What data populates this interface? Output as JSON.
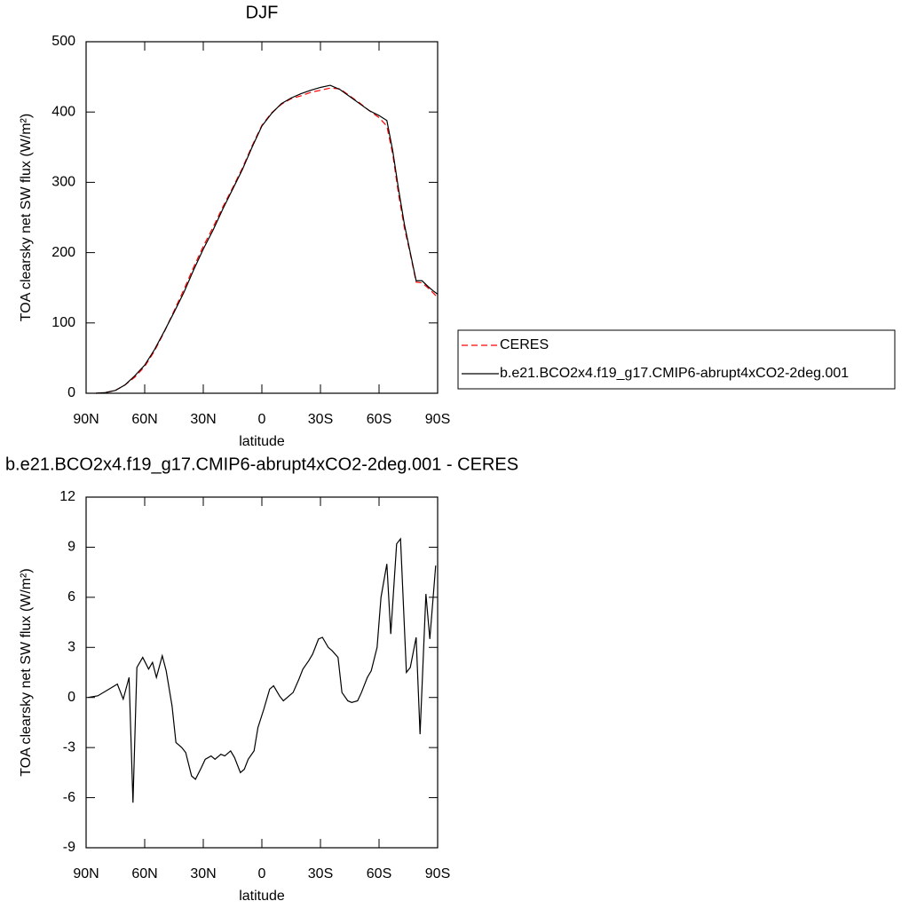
{
  "chart_data": [
    {
      "type": "line",
      "title": "DJF",
      "xlabel": "latitude",
      "ylabel": "TOA clearsky net SW flux (W/m²)",
      "xlim": [
        90,
        -90
      ],
      "ylim": [
        0,
        500
      ],
      "xticks": [
        {
          "value": 90,
          "label": "90N"
        },
        {
          "value": 60,
          "label": "60N"
        },
        {
          "value": 30,
          "label": "30N"
        },
        0,
        {
          "value": -30,
          "label": "30S"
        },
        {
          "value": -60,
          "label": "60S"
        },
        {
          "value": -90,
          "label": "90S"
        }
      ],
      "yticks": [
        0,
        100,
        200,
        300,
        400,
        500
      ],
      "legend": "right",
      "x": [
        85,
        80,
        75,
        70,
        65,
        60,
        55,
        50,
        45,
        40,
        35,
        30,
        25,
        20,
        15,
        10,
        5,
        0,
        -5,
        -10,
        -15,
        -20,
        -25,
        -30,
        -35,
        -40,
        -45,
        -50,
        -55,
        -60,
        -64,
        -67,
        -70,
        -73,
        -76,
        -79,
        -82,
        -85,
        -88,
        -90
      ],
      "series": [
        {
          "name": "CERES",
          "color": "#ff0000",
          "dashed": true,
          "values": [
            0,
            1,
            4,
            12,
            23,
            38,
            60,
            87,
            117,
            147,
            179,
            209,
            236,
            265,
            292,
            320,
            352,
            381,
            399,
            411,
            419,
            423,
            428,
            431,
            434,
            433,
            423,
            413,
            402,
            392,
            380,
            340,
            283,
            235,
            198,
            158,
            157,
            150,
            142,
            136
          ]
        },
        {
          "name": "b.e21.BCO2x4.f19_g17.CMIP6-abrupt4xCO2-2deg.001",
          "color": "#000000",
          "dashed": false,
          "values": [
            0,
            1,
            4,
            12,
            25,
            40,
            62,
            88,
            115,
            143,
            175,
            205,
            232,
            262,
            290,
            318,
            350,
            380,
            398,
            412,
            420,
            426,
            431,
            435,
            438,
            432,
            422,
            412,
            402,
            395,
            388,
            345,
            290,
            240,
            200,
            160,
            160,
            152,
            145,
            141
          ]
        }
      ]
    },
    {
      "type": "line",
      "title": "b.e21.BCO2x4.f19_g17.CMIP6-abrupt4xCO2-2deg.001 - CERES",
      "xlabel": "latitude",
      "ylabel": "TOA clearsky net SW flux (W/m²)",
      "xlim": [
        90,
        -90
      ],
      "ylim": [
        -9,
        12
      ],
      "xticks": [
        {
          "value": 90,
          "label": "90N"
        },
        {
          "value": 60,
          "label": "60N"
        },
        {
          "value": 30,
          "label": "30N"
        },
        0,
        {
          "value": -30,
          "label": "30S"
        },
        {
          "value": -60,
          "label": "60S"
        },
        {
          "value": -90,
          "label": "90S"
        }
      ],
      "yticks": [
        12,
        9,
        6,
        3,
        0,
        -3,
        -6,
        -9
      ],
      "x": [
        89,
        84,
        74,
        71,
        68,
        66,
        64,
        61,
        58,
        56,
        54,
        51,
        49,
        46,
        44,
        41,
        39,
        36,
        34,
        31,
        29,
        26,
        24,
        21,
        19,
        16,
        14,
        11,
        9,
        7,
        4,
        2,
        -1,
        -4,
        -6,
        -9,
        -11,
        -14,
        -16,
        -19,
        -21,
        -24,
        -26,
        -29,
        -31,
        -34,
        -36,
        -39,
        -41,
        -44,
        -46,
        -49,
        -51,
        -54,
        -56,
        -59,
        -61,
        -64,
        -66,
        -69,
        -71,
        -74,
        -76,
        -79,
        -81,
        -84,
        -86,
        -89
      ],
      "series": [
        {
          "color": "#000000",
          "dashed": false,
          "values": [
            0,
            0.1,
            0.8,
            -0.1,
            1.2,
            -6.3,
            1.8,
            2.4,
            1.7,
            2.1,
            1.2,
            2.5,
            1.6,
            -0.5,
            -2.7,
            -3.0,
            -3.3,
            -4.7,
            -4.9,
            -4.2,
            -3.7,
            -3.5,
            -3.7,
            -3.4,
            -3.5,
            -3.2,
            -3.6,
            -4.5,
            -4.3,
            -3.7,
            -3.2,
            -1.8,
            -0.7,
            0.5,
            0.7,
            0.1,
            -0.2,
            0.1,
            0.3,
            1.1,
            1.7,
            2.2,
            2.6,
            3.5,
            3.6,
            3.0,
            2.8,
            2.4,
            0.3,
            -0.2,
            -0.3,
            -0.2,
            0.3,
            1.2,
            1.6,
            3.0,
            6.0,
            8.0,
            3.8,
            9.2,
            9.5,
            1.5,
            1.8,
            3.6,
            -2.2,
            6.2,
            3.5,
            7.9
          ]
        }
      ]
    }
  ]
}
